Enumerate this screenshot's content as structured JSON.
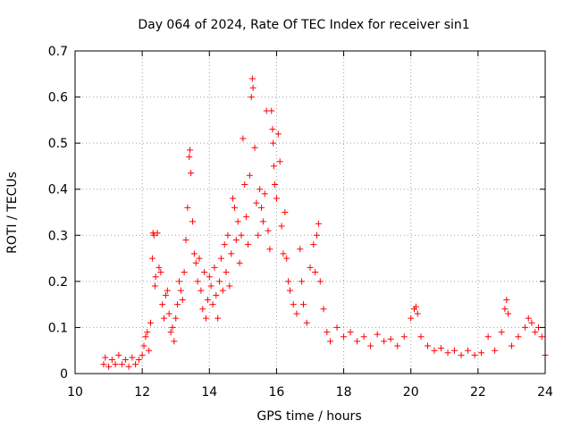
{
  "chart_data": {
    "type": "scatter",
    "title": "Day 064 of 2024, Rate Of TEC Index for receiver sin1",
    "xlabel": "GPS time / hours",
    "ylabel": "ROTI / TECUs",
    "xlim": [
      10,
      24
    ],
    "ylim": [
      0,
      0.7
    ],
    "x_ticks": [
      "10",
      "12",
      "14",
      "16",
      "18",
      "20",
      "22",
      "24"
    ],
    "y_ticks": [
      "0",
      "0.1",
      "0.2",
      "0.3",
      "0.4",
      "0.5",
      "0.6",
      "0.7"
    ],
    "grid": true,
    "marker": "+",
    "color": "#ff0000",
    "points": [
      [
        10.85,
        0.02
      ],
      [
        10.9,
        0.035
      ],
      [
        11.0,
        0.015
      ],
      [
        11.1,
        0.03
      ],
      [
        11.2,
        0.02
      ],
      [
        11.3,
        0.04
      ],
      [
        11.4,
        0.02
      ],
      [
        11.5,
        0.03
      ],
      [
        11.6,
        0.015
      ],
      [
        11.7,
        0.035
      ],
      [
        11.8,
        0.02
      ],
      [
        11.9,
        0.03
      ],
      [
        12.0,
        0.04
      ],
      [
        12.05,
        0.06
      ],
      [
        12.1,
        0.08
      ],
      [
        12.15,
        0.09
      ],
      [
        12.2,
        0.05
      ],
      [
        12.25,
        0.11
      ],
      [
        12.3,
        0.25
      ],
      [
        12.32,
        0.305
      ],
      [
        12.35,
        0.3
      ],
      [
        12.38,
        0.19
      ],
      [
        12.4,
        0.21
      ],
      [
        12.45,
        0.305
      ],
      [
        12.5,
        0.23
      ],
      [
        12.55,
        0.22
      ],
      [
        12.6,
        0.15
      ],
      [
        12.65,
        0.12
      ],
      [
        12.7,
        0.17
      ],
      [
        12.75,
        0.18
      ],
      [
        12.8,
        0.13
      ],
      [
        12.85,
        0.09
      ],
      [
        12.9,
        0.1
      ],
      [
        12.95,
        0.07
      ],
      [
        13.0,
        0.12
      ],
      [
        13.05,
        0.15
      ],
      [
        13.1,
        0.2
      ],
      [
        13.15,
        0.18
      ],
      [
        13.2,
        0.16
      ],
      [
        13.25,
        0.22
      ],
      [
        13.3,
        0.29
      ],
      [
        13.35,
        0.36
      ],
      [
        13.4,
        0.47
      ],
      [
        13.42,
        0.485
      ],
      [
        13.45,
        0.435
      ],
      [
        13.5,
        0.33
      ],
      [
        13.55,
        0.26
      ],
      [
        13.6,
        0.24
      ],
      [
        13.65,
        0.2
      ],
      [
        13.7,
        0.25
      ],
      [
        13.75,
        0.18
      ],
      [
        13.8,
        0.14
      ],
      [
        13.85,
        0.22
      ],
      [
        13.9,
        0.12
      ],
      [
        13.95,
        0.16
      ],
      [
        14.0,
        0.21
      ],
      [
        14.05,
        0.19
      ],
      [
        14.1,
        0.15
      ],
      [
        14.15,
        0.23
      ],
      [
        14.2,
        0.17
      ],
      [
        14.25,
        0.12
      ],
      [
        14.3,
        0.2
      ],
      [
        14.35,
        0.25
      ],
      [
        14.4,
        0.18
      ],
      [
        14.45,
        0.28
      ],
      [
        14.5,
        0.22
      ],
      [
        14.55,
        0.3
      ],
      [
        14.6,
        0.19
      ],
      [
        14.65,
        0.26
      ],
      [
        14.7,
        0.38
      ],
      [
        14.75,
        0.36
      ],
      [
        14.8,
        0.29
      ],
      [
        14.85,
        0.33
      ],
      [
        14.9,
        0.24
      ],
      [
        14.95,
        0.3
      ],
      [
        15.0,
        0.51
      ],
      [
        15.05,
        0.41
      ],
      [
        15.1,
        0.34
      ],
      [
        15.15,
        0.28
      ],
      [
        15.2,
        0.43
      ],
      [
        15.25,
        0.6
      ],
      [
        15.28,
        0.64
      ],
      [
        15.3,
        0.62
      ],
      [
        15.35,
        0.49
      ],
      [
        15.4,
        0.37
      ],
      [
        15.45,
        0.3
      ],
      [
        15.5,
        0.4
      ],
      [
        15.55,
        0.36
      ],
      [
        15.6,
        0.33
      ],
      [
        15.65,
        0.39
      ],
      [
        15.7,
        0.57
      ],
      [
        15.75,
        0.31
      ],
      [
        15.8,
        0.27
      ],
      [
        15.85,
        0.57
      ],
      [
        15.88,
        0.53
      ],
      [
        15.9,
        0.5
      ],
      [
        15.92,
        0.45
      ],
      [
        15.95,
        0.41
      ],
      [
        16.0,
        0.38
      ],
      [
        16.05,
        0.52
      ],
      [
        16.1,
        0.46
      ],
      [
        16.15,
        0.32
      ],
      [
        16.2,
        0.26
      ],
      [
        16.25,
        0.35
      ],
      [
        16.3,
        0.25
      ],
      [
        16.35,
        0.2
      ],
      [
        16.4,
        0.18
      ],
      [
        16.5,
        0.15
      ],
      [
        16.6,
        0.13
      ],
      [
        16.7,
        0.27
      ],
      [
        16.75,
        0.2
      ],
      [
        16.8,
        0.15
      ],
      [
        16.9,
        0.11
      ],
      [
        17.0,
        0.23
      ],
      [
        17.1,
        0.28
      ],
      [
        17.15,
        0.22
      ],
      [
        17.2,
        0.3
      ],
      [
        17.25,
        0.325
      ],
      [
        17.3,
        0.2
      ],
      [
        17.4,
        0.14
      ],
      [
        17.5,
        0.09
      ],
      [
        17.6,
        0.07
      ],
      [
        17.8,
        0.1
      ],
      [
        18.0,
        0.08
      ],
      [
        18.2,
        0.09
      ],
      [
        18.4,
        0.07
      ],
      [
        18.6,
        0.08
      ],
      [
        18.8,
        0.06
      ],
      [
        19.0,
        0.085
      ],
      [
        19.2,
        0.07
      ],
      [
        19.4,
        0.075
      ],
      [
        19.6,
        0.06
      ],
      [
        19.8,
        0.08
      ],
      [
        20.0,
        0.12
      ],
      [
        20.1,
        0.14
      ],
      [
        20.15,
        0.145
      ],
      [
        20.2,
        0.13
      ],
      [
        20.3,
        0.08
      ],
      [
        20.5,
        0.06
      ],
      [
        20.7,
        0.05
      ],
      [
        20.9,
        0.055
      ],
      [
        21.1,
        0.045
      ],
      [
        21.3,
        0.05
      ],
      [
        21.5,
        0.04
      ],
      [
        21.7,
        0.05
      ],
      [
        21.9,
        0.04
      ],
      [
        22.1,
        0.045
      ],
      [
        22.3,
        0.08
      ],
      [
        22.5,
        0.05
      ],
      [
        22.7,
        0.09
      ],
      [
        22.8,
        0.14
      ],
      [
        22.85,
        0.16
      ],
      [
        22.9,
        0.13
      ],
      [
        23.0,
        0.06
      ],
      [
        23.2,
        0.08
      ],
      [
        23.4,
        0.1
      ],
      [
        23.5,
        0.12
      ],
      [
        23.6,
        0.11
      ],
      [
        23.7,
        0.09
      ],
      [
        23.8,
        0.1
      ],
      [
        23.9,
        0.08
      ],
      [
        24.0,
        0.04
      ]
    ]
  }
}
